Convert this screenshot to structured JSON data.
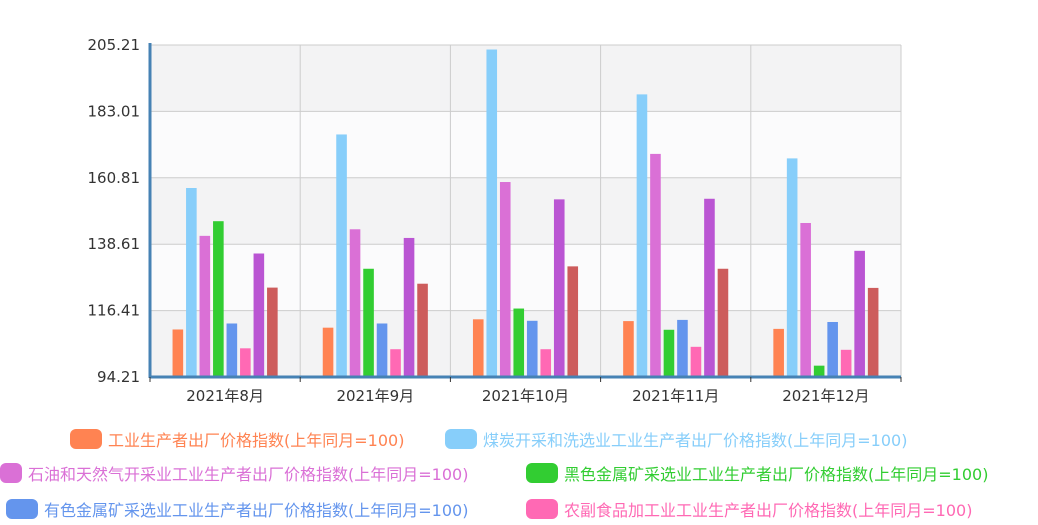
{
  "chart_data": {
    "type": "bar",
    "title": "",
    "xlabel": "",
    "ylabel": "",
    "categories": [
      "2021年8月",
      "2021年9月",
      "2021年10月",
      "2021年11月",
      "2021年12月"
    ],
    "yticks": [
      "94.21",
      "116.41",
      "138.61",
      "160.81",
      "183.01",
      "205.21"
    ],
    "ylim": [
      94.21,
      205.21
    ],
    "grid": true,
    "legend_position": "bottom",
    "series": [
      {
        "name": "工业生产者出厂价格指数(上年同月=100)",
        "color": "#FF8352",
        "values": [
          110.1,
          110.7,
          113.5,
          112.9,
          110.3
        ]
      },
      {
        "name": "煤炭开采和洗选业工业生产者出厂价格指数(上年同月=100)",
        "color": "#87CEFA",
        "values": [
          157.4,
          175.3,
          203.7,
          188.7,
          167.3
        ]
      },
      {
        "name": "石油和天然气开采业工业生产者出厂价格指数(上年同月=100)",
        "color": "#DA70D6",
        "values": [
          141.4,
          143.6,
          159.4,
          168.8,
          145.7
        ]
      },
      {
        "name": "黑色金属矿采选业工业生产者出厂价格指数(上年同月=100)",
        "color": "#32CD32",
        "values": [
          146.3,
          130.4,
          117.1,
          110.0,
          98.0
        ]
      },
      {
        "name": "有色金属矿采选业工业生产者出厂价格指数(上年同月=100)",
        "color": "#6495ED",
        "values": [
          112.1,
          112.1,
          113.0,
          113.3,
          112.6
        ]
      },
      {
        "name": "农副食品加工业工业生产者出厂价格指数(上年同月=100)",
        "color": "#FF69B4",
        "values": [
          103.8,
          103.5,
          103.5,
          104.3,
          103.3
        ]
      },
      {
        "name": "",
        "color": "#BA55D3",
        "values": [
          135.5,
          140.7,
          153.6,
          153.8,
          136.4
        ]
      },
      {
        "name": "",
        "color": "#CD5C5C",
        "values": [
          124.1,
          125.4,
          131.2,
          130.4,
          124.0
        ]
      }
    ]
  }
}
